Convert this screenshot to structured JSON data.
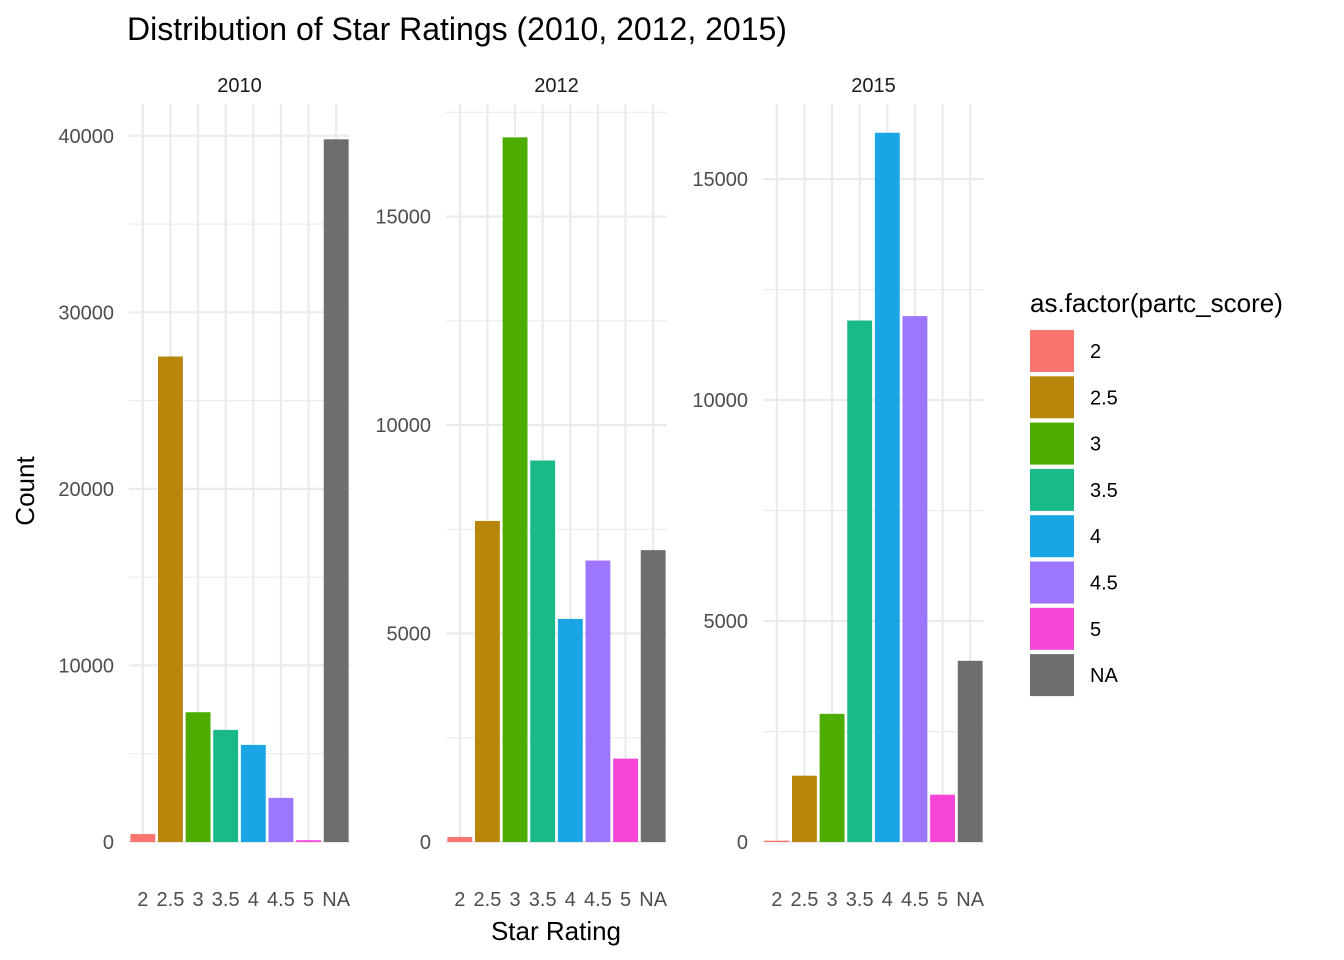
{
  "chart_data": {
    "type": "bar",
    "title": "Distribution of Star Ratings (2010, 2012, 2015)",
    "xlabel": "Star Rating",
    "ylabel": "Count",
    "categories": [
      "2",
      "2.5",
      "3",
      "3.5",
      "4",
      "4.5",
      "5",
      "NA"
    ],
    "legend": {
      "title": "as.factor(partc_score)",
      "placement": "right",
      "entries": [
        "2",
        "2.5",
        "3",
        "3.5",
        "4",
        "4.5",
        "5",
        "NA"
      ]
    },
    "colors": [
      "#F8766D",
      "#B8860B",
      "#4DAC00",
      "#19B98A",
      "#1AA5E5",
      "#9C76FF",
      "#F745D8",
      "#6E6E6E"
    ],
    "grid": true,
    "panels": [
      {
        "label": "2010",
        "values": [
          450,
          27500,
          7350,
          6350,
          5500,
          2500,
          100,
          39800
        ],
        "ylim": [
          0,
          41800
        ],
        "yticks": [
          0,
          10000,
          20000,
          30000,
          40000
        ],
        "ytick_labels": [
          "0",
          "10000",
          "20000",
          "30000",
          "40000"
        ]
      },
      {
        "label": "2012",
        "values": [
          120,
          7700,
          16900,
          9150,
          5350,
          6750,
          2000,
          7000
        ],
        "ylim": [
          0,
          17700
        ],
        "yticks": [
          0,
          5000,
          10000,
          15000
        ],
        "ytick_labels": [
          "0",
          "5000",
          "10000",
          "15000"
        ]
      },
      {
        "label": "2015",
        "values": [
          30,
          1500,
          2900,
          11800,
          16050,
          11900,
          1070,
          4100
        ],
        "ylim": [
          0,
          16700
        ],
        "yticks": [
          0,
          5000,
          10000,
          15000
        ],
        "ytick_labels": [
          "0",
          "5000",
          "10000",
          "15000"
        ]
      }
    ]
  }
}
